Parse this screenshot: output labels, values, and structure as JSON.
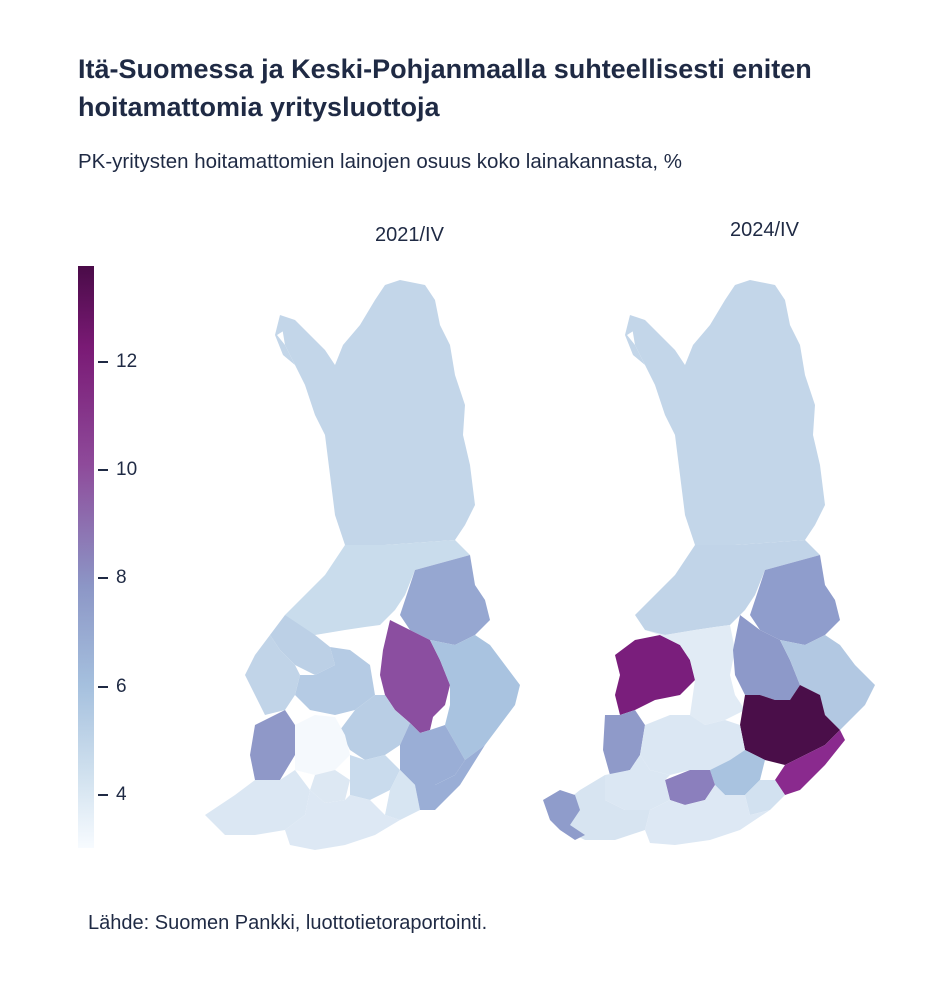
{
  "title": "Itä-Suomessa ja Keski-Pohjanmaalla suhteellisesti eniten hoitamattomia yritysluottoja",
  "subtitle": "PK-yritysten hoitamattomien lainojen osuus koko lainakannasta, %",
  "source": "Lähde: Suomen Pankki, luottotietoraportointi.",
  "colorbar": {
    "ticks": [
      "12",
      "10",
      "8",
      "6",
      "4"
    ],
    "colors": {
      "max": "#4a0b48",
      "high": "#7a1a75",
      "mid": "#8c96c6",
      "low": "#cfe0ee",
      "min": "#f7fbff"
    }
  },
  "maps": [
    {
      "label": "2021/IV"
    },
    {
      "label": "2024/IV"
    }
  ]
}
